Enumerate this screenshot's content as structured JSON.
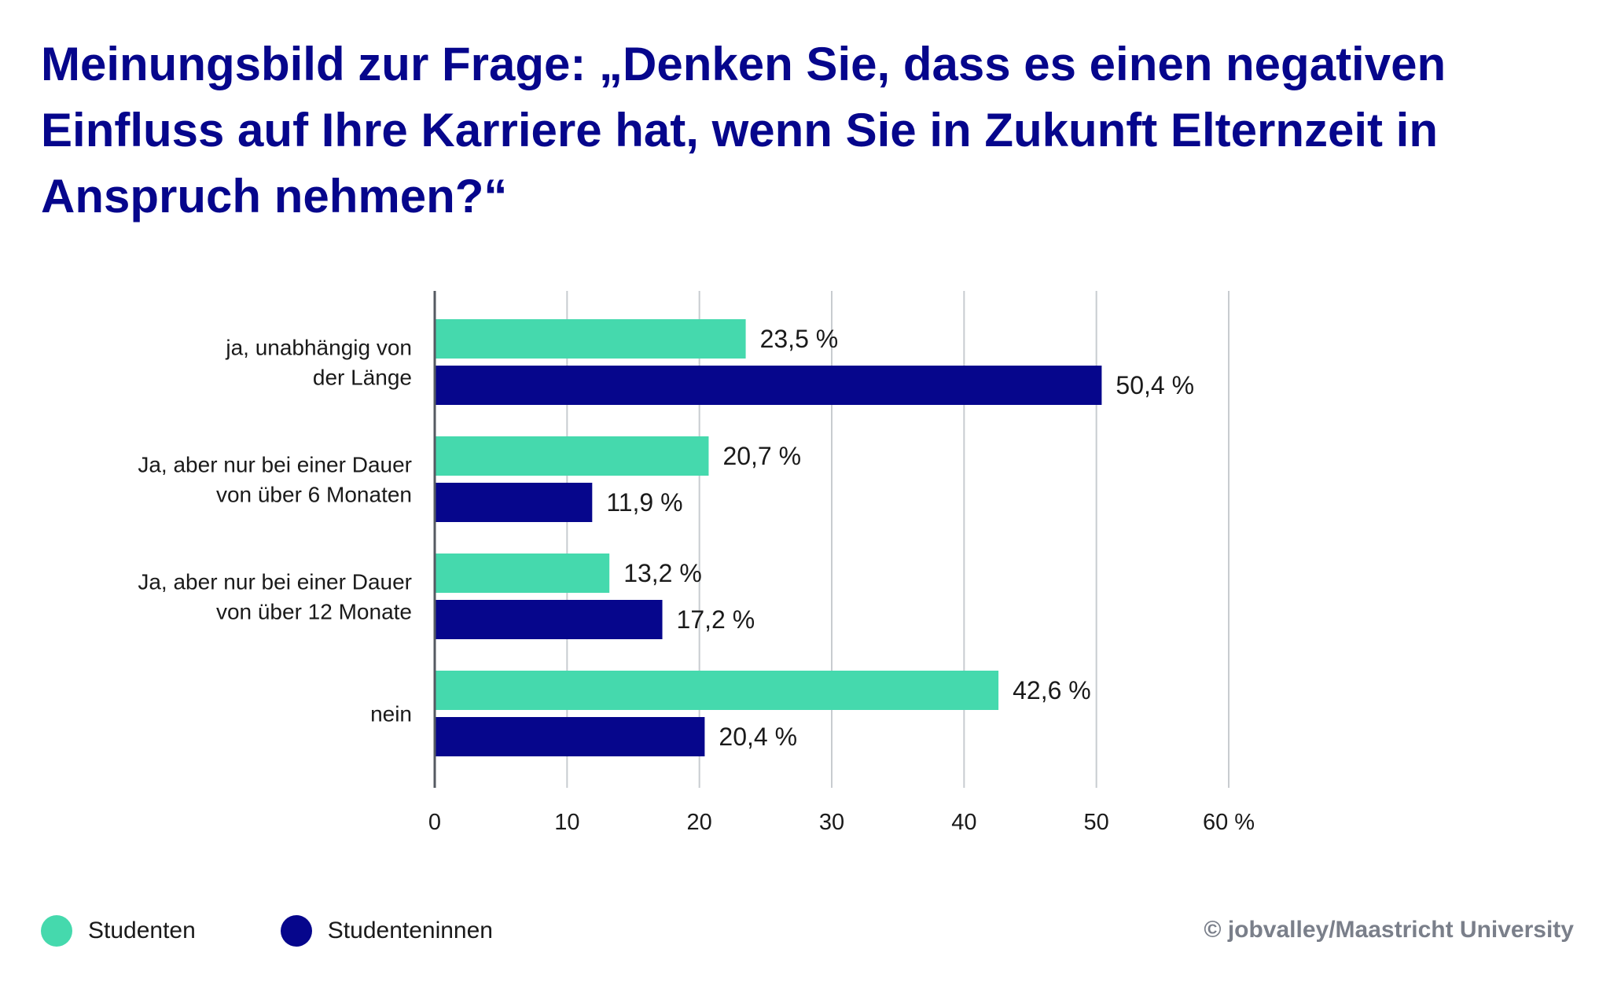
{
  "title": "Meinungsbild zur Frage: „Denken Sie, dass es einen negativen Einfluss auf Ihre Karriere hat, wenn Sie in Zukunft Elternzeit in Anspruch nehmen?“",
  "credit": "© jobvalley/Maastricht University",
  "colors": {
    "title": "#06068c",
    "studenten": "#45d9ad",
    "studenteninnen": "#06068c",
    "grid": "#c8ccd0",
    "axis": "#555a62",
    "text": "#1a1a1a",
    "credit": "#7a7f8a"
  },
  "legend": [
    {
      "label": "Studenten",
      "color": "#45d9ad"
    },
    {
      "label": "Studenteninnen",
      "color": "#06068c"
    }
  ],
  "chart_data": {
    "type": "bar",
    "orientation": "horizontal",
    "title": "Meinungsbild zur Frage: „Denken Sie, dass es einen negativen Einfluss auf Ihre Karriere hat, wenn Sie in Zukunft Elternzeit in Anspruch nehmen?“",
    "categories": [
      [
        "ja, unabhängig von",
        "der Länge"
      ],
      [
        "Ja, aber nur bei einer Dauer",
        "von über 6 Monaten"
      ],
      [
        "Ja, aber nur bei einer Dauer",
        "von über 12 Monate"
      ],
      [
        "nein"
      ]
    ],
    "series": [
      {
        "name": "Studenten",
        "color": "#45d9ad",
        "values": [
          23.5,
          20.7,
          13.2,
          42.6
        ],
        "labels": [
          "23,5 %",
          "20,7 %",
          "13,2 %",
          "42,6 %"
        ]
      },
      {
        "name": "Studenteninnen",
        "color": "#06068c",
        "values": [
          50.4,
          11.9,
          17.2,
          20.4
        ],
        "labels": [
          "50,4 %",
          "11,9 %",
          "17,2 %",
          "20,4 %"
        ]
      }
    ],
    "xlim": [
      0,
      60
    ],
    "xticks": [
      0,
      10,
      20,
      30,
      40,
      50,
      60
    ],
    "xtick_labels": [
      "0",
      "10",
      "20",
      "30",
      "40",
      "50",
      "60 %"
    ],
    "grid": true,
    "legend_position": "bottom-left"
  }
}
